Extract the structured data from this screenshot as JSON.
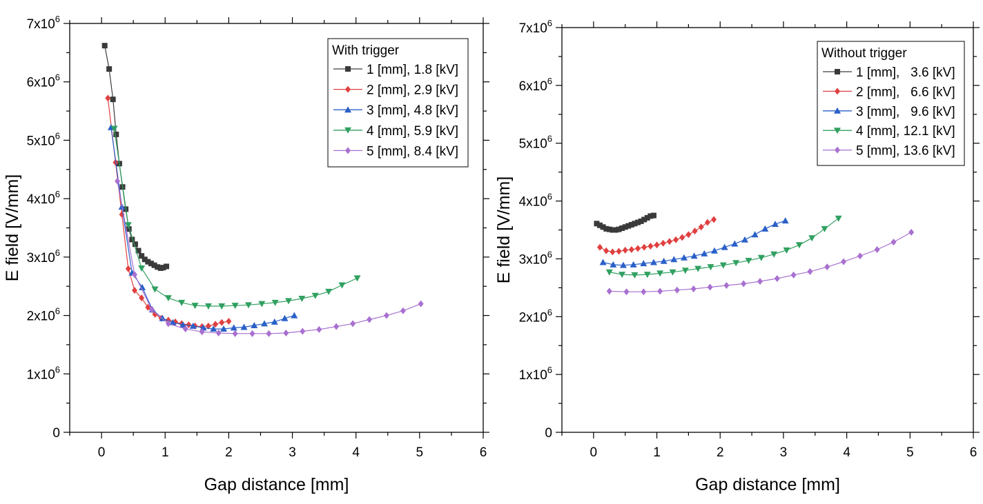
{
  "chart_data": [
    {
      "type": "line",
      "title": "",
      "xlabel": "Gap distance [mm]",
      "ylabel": "E field [V/mm]",
      "xlim": [
        -0.5,
        6
      ],
      "ylim": [
        0,
        7000000
      ],
      "xticks": [
        "0",
        "1",
        "2",
        "3",
        "4",
        "5",
        "6"
      ],
      "ytick_mantissa": [
        "0",
        "1x10",
        "2x10",
        "3x10",
        "4x10",
        "5x10",
        "6x10",
        "7x10"
      ],
      "ytick_exponent": "6",
      "grid": false,
      "legend_title": "With trigger",
      "legend_position": "top-right",
      "series": [
        {
          "name": "1 [mm], 1.8 [kV]",
          "color": "#3a3a3a",
          "marker": "square",
          "x": [
            0.05,
            0.12,
            0.18,
            0.23,
            0.28,
            0.33,
            0.38,
            0.43,
            0.48,
            0.53,
            0.58,
            0.63,
            0.68,
            0.73,
            0.78,
            0.83,
            0.88,
            0.93,
            0.97,
            1.02
          ],
          "y": [
            6620000,
            6220000,
            5700000,
            5100000,
            4600000,
            4200000,
            3820000,
            3480000,
            3300000,
            3220000,
            3110000,
            3020000,
            2960000,
            2920000,
            2890000,
            2860000,
            2830000,
            2810000,
            2820000,
            2840000
          ]
        },
        {
          "name": "2 [mm], 2.9 [kV]",
          "color": "#e04040",
          "marker": "diamond",
          "x": [
            0.1,
            0.22,
            0.32,
            0.42,
            0.52,
            0.63,
            0.73,
            0.84,
            0.94,
            1.05,
            1.16,
            1.26,
            1.37,
            1.47,
            1.58,
            1.68,
            1.79,
            1.89,
            2.0
          ],
          "y": [
            5720000,
            4620000,
            3730000,
            2800000,
            2430000,
            2300000,
            2140000,
            2020000,
            1950000,
            1920000,
            1890000,
            1860000,
            1840000,
            1820000,
            1810000,
            1820000,
            1850000,
            1880000,
            1900000
          ]
        },
        {
          "name": "3 [mm], 4.8 [kV]",
          "color": "#2a60c8",
          "marker": "triangle",
          "x": [
            0.15,
            0.32,
            0.48,
            0.64,
            0.8,
            0.96,
            1.12,
            1.28,
            1.44,
            1.6,
            1.76,
            1.92,
            2.08,
            2.24,
            2.4,
            2.56,
            2.72,
            2.88,
            3.03
          ],
          "y": [
            5220000,
            3860000,
            2730000,
            2480000,
            2100000,
            1950000,
            1880000,
            1840000,
            1820000,
            1790000,
            1770000,
            1770000,
            1790000,
            1800000,
            1830000,
            1860000,
            1890000,
            1950000,
            2000000
          ]
        },
        {
          "name": "4 [mm], 5.9 [kV]",
          "color": "#30a060",
          "marker": "triangle-down",
          "x": [
            0.2,
            0.42,
            0.63,
            0.84,
            1.05,
            1.26,
            1.47,
            1.68,
            1.89,
            2.1,
            2.31,
            2.52,
            2.73,
            2.94,
            3.15,
            3.36,
            3.57,
            3.78,
            4.02
          ],
          "y": [
            5200000,
            3550000,
            2810000,
            2450000,
            2300000,
            2220000,
            2170000,
            2160000,
            2160000,
            2170000,
            2180000,
            2200000,
            2220000,
            2250000,
            2290000,
            2340000,
            2410000,
            2520000,
            2640000
          ]
        },
        {
          "name": "5 [mm], 8.4 [kV]",
          "color": "#a870d0",
          "marker": "diamond",
          "x": [
            0.25,
            0.52,
            0.79,
            1.05,
            1.32,
            1.58,
            1.84,
            2.1,
            2.37,
            2.63,
            2.9,
            3.16,
            3.42,
            3.69,
            3.95,
            4.21,
            4.48,
            4.74,
            5.02
          ],
          "y": [
            4300000,
            2700000,
            2100000,
            1860000,
            1770000,
            1720000,
            1700000,
            1690000,
            1690000,
            1690000,
            1700000,
            1730000,
            1760000,
            1810000,
            1860000,
            1930000,
            2000000,
            2080000,
            2200000
          ]
        }
      ]
    },
    {
      "type": "line",
      "title": "",
      "xlabel": "Gap distance [mm]",
      "ylabel": "E field [V/mm]",
      "xlim": [
        -0.5,
        6
      ],
      "ylim": [
        0,
        7000000
      ],
      "xticks": [
        "0",
        "1",
        "2",
        "3",
        "4",
        "5",
        "6"
      ],
      "ytick_mantissa": [
        "0",
        "1x10",
        "2x10",
        "3x10",
        "4x10",
        "5x10",
        "6x10",
        "7x10"
      ],
      "ytick_exponent": "6",
      "grid": false,
      "legend_title": "Without trigger",
      "legend_position": "top-right",
      "series": [
        {
          "name": "1 [mm],   3.6 [kV]",
          "color": "#3a3a3a",
          "marker": "square",
          "x": [
            0.05,
            0.1,
            0.15,
            0.2,
            0.25,
            0.3,
            0.35,
            0.4,
            0.45,
            0.5,
            0.55,
            0.6,
            0.65,
            0.7,
            0.75,
            0.8,
            0.85,
            0.9,
            0.95
          ],
          "y": [
            3610000,
            3580000,
            3550000,
            3520000,
            3510000,
            3500000,
            3500000,
            3510000,
            3530000,
            3550000,
            3570000,
            3590000,
            3610000,
            3630000,
            3650000,
            3680000,
            3710000,
            3740000,
            3750000
          ]
        },
        {
          "name": "2 [mm],   6.6 [kV]",
          "color": "#e04040",
          "marker": "diamond",
          "x": [
            0.1,
            0.2,
            0.3,
            0.4,
            0.5,
            0.6,
            0.7,
            0.8,
            0.9,
            1.0,
            1.1,
            1.2,
            1.3,
            1.4,
            1.5,
            1.6,
            1.7,
            1.8,
            1.9
          ],
          "y": [
            3200000,
            3140000,
            3120000,
            3130000,
            3150000,
            3160000,
            3180000,
            3200000,
            3220000,
            3240000,
            3270000,
            3300000,
            3330000,
            3370000,
            3420000,
            3480000,
            3550000,
            3630000,
            3680000
          ]
        },
        {
          "name": "3 [mm],   9.6 [kV]",
          "color": "#2a60c8",
          "marker": "triangle",
          "x": [
            0.15,
            0.31,
            0.47,
            0.63,
            0.79,
            0.95,
            1.11,
            1.27,
            1.43,
            1.59,
            1.75,
            1.91,
            2.07,
            2.23,
            2.39,
            2.55,
            2.71,
            2.87,
            3.03
          ],
          "y": [
            2940000,
            2900000,
            2890000,
            2900000,
            2920000,
            2940000,
            2960000,
            2990000,
            3020000,
            3050000,
            3090000,
            3140000,
            3200000,
            3260000,
            3330000,
            3420000,
            3520000,
            3600000,
            3660000
          ]
        },
        {
          "name": "4 [mm], 12.1 [kV]",
          "color": "#30a060",
          "marker": "triangle-down",
          "x": [
            0.25,
            0.45,
            0.65,
            0.85,
            1.05,
            1.25,
            1.45,
            1.65,
            1.85,
            2.05,
            2.25,
            2.45,
            2.65,
            2.85,
            3.05,
            3.25,
            3.45,
            3.65,
            3.87
          ],
          "y": [
            2770000,
            2730000,
            2720000,
            2730000,
            2750000,
            2770000,
            2800000,
            2830000,
            2860000,
            2890000,
            2930000,
            2970000,
            3020000,
            3080000,
            3150000,
            3240000,
            3360000,
            3520000,
            3700000
          ]
        },
        {
          "name": "5 [mm], 13.6 [kV]",
          "color": "#a870d0",
          "marker": "diamond",
          "x": [
            0.25,
            0.52,
            0.79,
            1.05,
            1.32,
            1.58,
            1.84,
            2.1,
            2.37,
            2.63,
            2.9,
            3.16,
            3.42,
            3.69,
            3.95,
            4.21,
            4.48,
            4.74,
            5.02
          ],
          "y": [
            2440000,
            2430000,
            2430000,
            2440000,
            2460000,
            2480000,
            2510000,
            2540000,
            2570000,
            2610000,
            2660000,
            2720000,
            2780000,
            2860000,
            2950000,
            3050000,
            3160000,
            3290000,
            3460000
          ]
        }
      ]
    }
  ]
}
